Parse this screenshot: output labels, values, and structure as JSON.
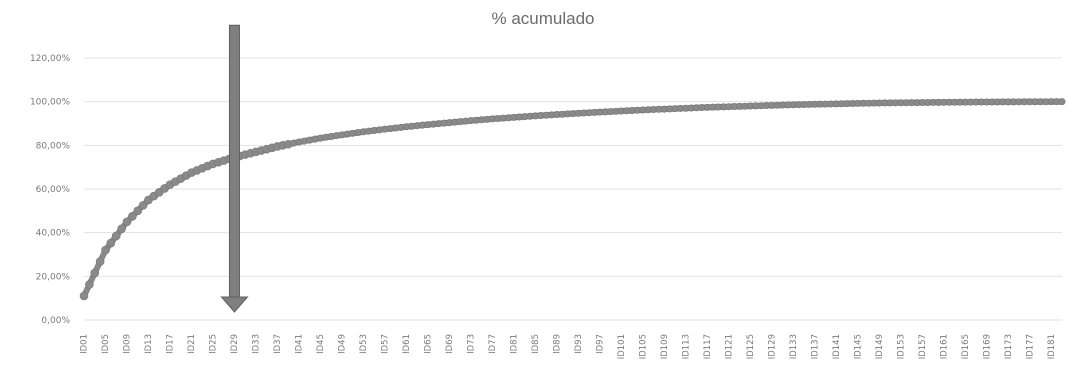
{
  "chart_data": {
    "type": "line",
    "title": "% acumulado",
    "xlabel": "",
    "ylabel": "",
    "y_ticks": [
      "0,00%",
      "20,00%",
      "40,00%",
      "60,00%",
      "80,00%",
      "100,00%",
      "120,00%"
    ],
    "ylim": [
      0,
      120
    ],
    "x_tick_labels": [
      "ID01",
      "ID05",
      "ID09",
      "ID13",
      "ID17",
      "ID21",
      "ID25",
      "ID29",
      "ID33",
      "ID37",
      "ID41",
      "ID45",
      "ID49",
      "ID53",
      "ID57",
      "ID61",
      "ID65",
      "ID69",
      "ID73",
      "ID77",
      "ID81",
      "ID85",
      "ID89",
      "ID93",
      "ID97",
      "ID101",
      "ID105",
      "ID109",
      "ID113",
      "ID117",
      "ID121",
      "ID125",
      "ID129",
      "ID133",
      "ID137",
      "ID141",
      "ID145",
      "ID149",
      "ID153",
      "ID157",
      "ID161",
      "ID165",
      "ID169",
      "ID173",
      "ID177",
      "ID181"
    ],
    "series": [
      {
        "values_note_sample_ids": [
          1,
          5,
          9,
          13,
          17,
          21,
          25,
          29,
          33,
          37,
          41,
          45,
          49,
          53,
          57,
          61,
          65,
          69,
          73,
          77,
          81,
          85,
          89,
          93,
          97,
          101,
          105,
          109,
          113,
          117,
          121,
          125,
          129,
          133,
          137,
          141,
          145,
          149,
          153,
          157,
          161,
          165,
          169,
          173,
          177,
          181
        ],
        "values": [
          11.0,
          32.0,
          45.0,
          55.0,
          62.0,
          67.5,
          71.5,
          74.5,
          77.0,
          79.5,
          81.5,
          83.3,
          84.8,
          86.2,
          87.4,
          88.5,
          89.5,
          90.4,
          91.3,
          92.1,
          92.8,
          93.5,
          94.1,
          94.7,
          95.2,
          95.7,
          96.2,
          96.6,
          97.0,
          97.4,
          97.7,
          98.0,
          98.3,
          98.6,
          98.8,
          99.0,
          99.2,
          99.4,
          99.5,
          99.6,
          99.7,
          99.8,
          99.85,
          99.9,
          99.95,
          100.0
        ]
      }
    ],
    "annotation": {
      "type": "arrow-down",
      "at_x_label": "ID29",
      "from_y": 135,
      "to_y": 0,
      "color": "#7f7f7f"
    },
    "colors": {
      "series": "#8a8a8a",
      "grid": "#e3e3e3",
      "text": "#7a7a7a",
      "arrow": "#7f7f7f"
    },
    "grid": true,
    "legend": "none"
  }
}
